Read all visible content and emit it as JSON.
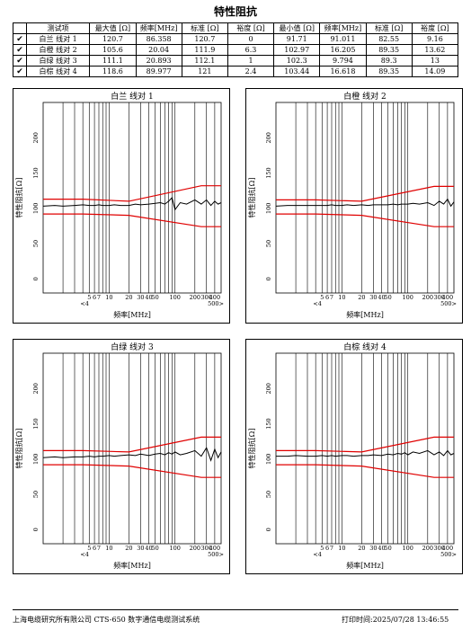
{
  "page_title": "特性阻抗",
  "table": {
    "headers": [
      "测试项",
      "最大值 [Ω]",
      "频率[MHz]",
      "标准 [Ω]",
      "裕度 [Ω]",
      "最小值 [Ω]",
      "频率[MHz]",
      "标准 [Ω]",
      "裕度 [Ω]"
    ],
    "rows": [
      {
        "item": "白兰 线对 1",
        "max": "120.7",
        "max_freq": "86.358",
        "max_std": "120.7",
        "max_margin": "0",
        "min": "91.71",
        "min_freq": "91.011",
        "min_std": "82.55",
        "min_margin": "9.16"
      },
      {
        "item": "白橙 线对 2",
        "max": "105.6",
        "max_freq": "20.04",
        "max_std": "111.9",
        "max_margin": "6.3",
        "min": "102.97",
        "min_freq": "16.205",
        "min_std": "89.35",
        "min_margin": "13.62"
      },
      {
        "item": "白绿 线对 3",
        "max": "111.1",
        "max_freq": "20.893",
        "max_std": "112.1",
        "max_margin": "1",
        "min": "102.3",
        "min_freq": "9.794",
        "min_std": "89.3",
        "min_margin": "13"
      },
      {
        "item": "白棕 线对 4",
        "max": "118.6",
        "max_freq": "89.977",
        "max_std": "121",
        "max_margin": "2.4",
        "min": "103.44",
        "min_freq": "16.618",
        "min_std": "89.35",
        "min_margin": "14.09"
      }
    ]
  },
  "axis": {
    "ylabel": "特性阻抗[Ω]",
    "xlabel": "频率[MHz]",
    "x_tick_labels": [
      {
        "v": 5,
        "t": "5"
      },
      {
        "v": 6,
        "t": "6"
      },
      {
        "v": 7,
        "t": "7"
      },
      {
        "v": 10,
        "t": "10"
      },
      {
        "v": 20,
        "t": "20"
      },
      {
        "v": 30,
        "t": "30"
      },
      {
        "v": 40,
        "t": "40"
      },
      {
        "v": 50,
        "t": "50"
      },
      {
        "v": 100,
        "t": "100"
      },
      {
        "v": 200,
        "t": "200"
      },
      {
        "v": 300,
        "t": "300"
      },
      {
        "v": 400,
        "t": "400"
      }
    ],
    "x_min_label": "<4",
    "x_max_label": "500>",
    "y_tick_labels": [
      {
        "v": 0,
        "t": "0"
      },
      {
        "v": 50,
        "t": "50"
      },
      {
        "v": 100,
        "t": "100"
      },
      {
        "v": 150,
        "t": "150"
      },
      {
        "v": 200,
        "t": "200"
      }
    ]
  },
  "chart_data": [
    {
      "type": "line",
      "title": "白兰 线对 1",
      "xscale": "log",
      "xlim": [
        1,
        500
      ],
      "ylim": [
        -20,
        250
      ],
      "grid": true,
      "series": [
        {
          "color": "#000000",
          "x": [
            1,
            1.5,
            2,
            3,
            4,
            5,
            6,
            7,
            8,
            10,
            12,
            15,
            20,
            25,
            30,
            40,
            50,
            60,
            70,
            80,
            90,
            100,
            120,
            150,
            200,
            250,
            300,
            350,
            400,
            450,
            500
          ],
          "y": [
            103,
            104,
            103,
            104,
            105,
            104,
            104,
            105,
            104,
            104,
            105,
            104,
            104,
            106,
            105,
            106,
            107,
            108,
            106,
            110,
            115,
            98,
            108,
            106,
            112,
            106,
            112,
            104,
            110,
            106,
            108
          ]
        },
        {
          "color": "#e00000",
          "x": [
            1,
            4,
            20,
            250,
            500
          ],
          "y": [
            113,
            113,
            110,
            132,
            132
          ]
        },
        {
          "color": "#e00000",
          "x": [
            1,
            4,
            20,
            250,
            500
          ],
          "y": [
            92,
            92,
            90,
            74,
            74
          ]
        }
      ]
    },
    {
      "type": "line",
      "title": "白橙 线对 2",
      "xscale": "log",
      "xlim": [
        1,
        500
      ],
      "ylim": [
        -20,
        250
      ],
      "grid": true,
      "series": [
        {
          "color": "#000000",
          "x": [
            1,
            1.5,
            2,
            3,
            4,
            5,
            6,
            7,
            8,
            10,
            12,
            15,
            20,
            25,
            30,
            40,
            50,
            60,
            70,
            80,
            90,
            100,
            120,
            150,
            200,
            250,
            300,
            350,
            400,
            450,
            500
          ],
          "y": [
            103,
            104,
            104,
            104,
            104,
            104,
            104,
            105,
            104,
            104,
            105,
            104,
            105,
            104,
            105,
            105,
            105,
            106,
            105,
            106,
            106,
            106,
            107,
            106,
            108,
            104,
            110,
            106,
            113,
            103,
            109
          ]
        },
        {
          "color": "#e00000",
          "x": [
            1,
            4,
            20,
            250,
            500
          ],
          "y": [
            112,
            112,
            110,
            131,
            131
          ]
        },
        {
          "color": "#e00000",
          "x": [
            1,
            4,
            20,
            250,
            500
          ],
          "y": [
            92,
            92,
            90,
            74,
            74
          ]
        }
      ]
    },
    {
      "type": "line",
      "title": "白绿 线对 3",
      "xscale": "log",
      "xlim": [
        1,
        500
      ],
      "ylim": [
        -20,
        250
      ],
      "grid": true,
      "series": [
        {
          "color": "#000000",
          "x": [
            1,
            1.5,
            2,
            3,
            4,
            5,
            6,
            7,
            8,
            10,
            12,
            15,
            20,
            25,
            30,
            40,
            50,
            60,
            70,
            80,
            90,
            100,
            120,
            150,
            200,
            250,
            300,
            350,
            400,
            450,
            500
          ],
          "y": [
            102,
            103,
            102,
            103,
            103,
            104,
            103,
            104,
            104,
            105,
            104,
            105,
            106,
            105,
            107,
            105,
            107,
            108,
            106,
            109,
            107,
            110,
            106,
            108,
            112,
            104,
            116,
            98,
            114,
            102,
            110
          ]
        },
        {
          "color": "#e00000",
          "x": [
            1,
            4,
            20,
            250,
            500
          ],
          "y": [
            112,
            112,
            110,
            131,
            131
          ]
        },
        {
          "color": "#e00000",
          "x": [
            1,
            4,
            20,
            250,
            500
          ],
          "y": [
            92,
            92,
            90,
            74,
            74
          ]
        }
      ]
    },
    {
      "type": "line",
      "title": "白棕 线对 4",
      "xscale": "log",
      "xlim": [
        1,
        500
      ],
      "ylim": [
        -20,
        250
      ],
      "grid": true,
      "series": [
        {
          "color": "#000000",
          "x": [
            1,
            1.5,
            2,
            3,
            4,
            5,
            6,
            7,
            8,
            10,
            12,
            15,
            20,
            25,
            30,
            40,
            50,
            60,
            70,
            80,
            90,
            100,
            120,
            150,
            200,
            250,
            300,
            350,
            400,
            450,
            500
          ],
          "y": [
            104,
            104,
            105,
            104,
            104,
            105,
            104,
            105,
            104,
            105,
            105,
            104,
            105,
            105,
            106,
            105,
            107,
            106,
            108,
            107,
            109,
            106,
            110,
            108,
            112,
            106,
            110,
            105,
            112,
            106,
            108
          ]
        },
        {
          "color": "#e00000",
          "x": [
            1,
            4,
            20,
            250,
            500
          ],
          "y": [
            112,
            112,
            110,
            131,
            131
          ]
        },
        {
          "color": "#e00000",
          "x": [
            1,
            4,
            20,
            250,
            500
          ],
          "y": [
            92,
            92,
            90,
            74,
            74
          ]
        }
      ]
    }
  ],
  "footer": {
    "left": "上海电缆研究所有限公司 CTS-650 数字通信电缆测试系统",
    "right": "打印时间:2025/07/28 13:46:55"
  }
}
